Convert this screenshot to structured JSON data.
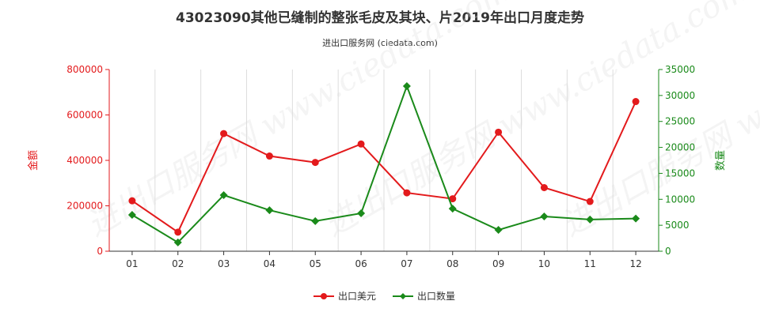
{
  "title": "43023090其他已缝制的整张毛皮及其块、片2019年出口月度走势",
  "subtitle": "进出口服务网 (ciedata.com)",
  "watermark": "进出口服务网 www.ciedata.com",
  "chart_data": {
    "type": "line",
    "categories": [
      "01",
      "02",
      "03",
      "04",
      "05",
      "06",
      "07",
      "08",
      "09",
      "10",
      "11",
      "12"
    ],
    "series": [
      {
        "name": "出口美元",
        "axis": "left",
        "color": "#e31a1c",
        "marker": "circle",
        "values": [
          222000,
          84000,
          518000,
          419000,
          391000,
          472000,
          257000,
          231000,
          524000,
          280000,
          219000,
          659000
        ]
      },
      {
        "name": "出口数量",
        "axis": "right",
        "color": "#1a8a1a",
        "marker": "diamond",
        "values": [
          7000,
          1700,
          10800,
          7900,
          5800,
          7300,
          31800,
          8200,
          4100,
          6700,
          6100,
          6300
        ]
      }
    ],
    "ylabel_left": "金额",
    "ylabel_right": "数量",
    "ylim_left": [
      0,
      800000
    ],
    "ylim_right": [
      0,
      35000
    ],
    "yticks_left": [
      0,
      200000,
      400000,
      600000,
      800000
    ],
    "yticks_right": [
      0,
      5000,
      10000,
      15000,
      20000,
      25000,
      30000,
      35000
    ],
    "grid": "vertical",
    "legend_position": "bottom"
  }
}
